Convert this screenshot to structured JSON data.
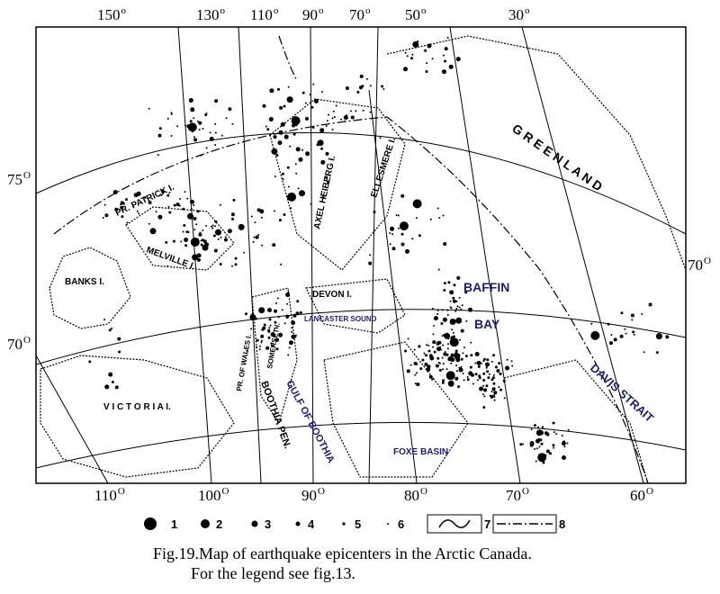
{
  "top_labels": [
    {
      "text": "150",
      "sup": "o"
    },
    {
      "text": "130",
      "sup": "o"
    },
    {
      "text": "110",
      "sup": "o"
    },
    {
      "text": "90",
      "sup": "o"
    },
    {
      "text": "70",
      "sup": "o"
    },
    {
      "text": "50",
      "sup": "o"
    },
    {
      "text": "30",
      "sup": "o"
    }
  ],
  "left_labels": [
    {
      "text": "75",
      "sup": "O"
    },
    {
      "text": "70",
      "sup": "O"
    }
  ],
  "right_labels": [
    {
      "text": "70",
      "sup": "O"
    }
  ],
  "bottom_labels": [
    {
      "text": "110",
      "sup": "O"
    },
    {
      "text": "100",
      "sup": "O"
    },
    {
      "text": "90",
      "sup": "O"
    },
    {
      "text": "80",
      "sup": "O"
    },
    {
      "text": "70",
      "sup": "O"
    },
    {
      "text": "60",
      "sup": "O"
    }
  ],
  "places": {
    "banks": "BANKS I.",
    "patrick": "PR. PATRICK I.",
    "melville": "MELVILLE I.",
    "axel": "AXEL HEIBERG I.",
    "ellesmere": "ELLESMERE I.",
    "greenland": "G R E E N L A N D",
    "devon": "DEVON I.",
    "baffin": "BAFFIN",
    "bay": "BAY",
    "lancaster": "LANCASTER SOUND",
    "wales": "PR. OF WALES I.",
    "somerset": "SOMERSET I.",
    "victoria": "V I C T O R I A  I.",
    "gulf": "GULF OF BOOTHIA",
    "boothia": "BOOTHIA PEN.",
    "foxe": "FOXE BASIN",
    "davis": "DAVIS STRAIT"
  },
  "legend": [
    "1",
    "2",
    "3",
    "4",
    "5",
    "6",
    "7",
    "8"
  ],
  "caption": [
    "Fig.19.Map of earthquake epicenters in the Arctic Canada.",
    "For the legend see fig.13."
  ]
}
